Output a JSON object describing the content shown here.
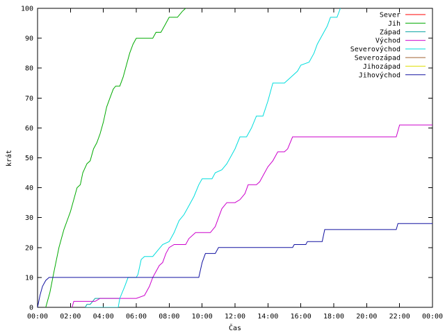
{
  "chart_data": {
    "type": "line",
    "xlabel": "Čas",
    "ylabel": "krát",
    "xlim": [
      0,
      24
    ],
    "ylim": [
      0,
      100
    ],
    "x_ticks": [
      {
        "value": 0,
        "label": "00:00"
      },
      {
        "value": 2,
        "label": "02:00"
      },
      {
        "value": 4,
        "label": "04:00"
      },
      {
        "value": 6,
        "label": "06:00"
      },
      {
        "value": 8,
        "label": "08:00"
      },
      {
        "value": 10,
        "label": "10:00"
      },
      {
        "value": 12,
        "label": "12:00"
      },
      {
        "value": 14,
        "label": "14:00"
      },
      {
        "value": 16,
        "label": "16:00"
      },
      {
        "value": 18,
        "label": "18:00"
      },
      {
        "value": 20,
        "label": "20:00"
      },
      {
        "value": 22,
        "label": "22:00"
      },
      {
        "value": 24,
        "label": "00:00"
      }
    ],
    "y_ticks": [
      0,
      10,
      20,
      30,
      40,
      50,
      60,
      70,
      80,
      90,
      100
    ],
    "grid": false,
    "legend_position": "top-right",
    "series": [
      {
        "name": "Sever",
        "color": "#ff0000",
        "points": []
      },
      {
        "name": "Jih",
        "color": "#00aa00",
        "points": [
          [
            0.5,
            0
          ],
          [
            0.75,
            5
          ],
          [
            1.0,
            12
          ],
          [
            1.3,
            20
          ],
          [
            1.6,
            26
          ],
          [
            1.8,
            29
          ],
          [
            2.0,
            32
          ],
          [
            2.2,
            36
          ],
          [
            2.4,
            40
          ],
          [
            2.6,
            41
          ],
          [
            2.75,
            45
          ],
          [
            3.0,
            48
          ],
          [
            3.2,
            49
          ],
          [
            3.4,
            53
          ],
          [
            3.6,
            55
          ],
          [
            3.8,
            58
          ],
          [
            4.0,
            62
          ],
          [
            4.2,
            67
          ],
          [
            4.4,
            70
          ],
          [
            4.6,
            73
          ],
          [
            4.75,
            74
          ],
          [
            5.0,
            74
          ],
          [
            5.2,
            77
          ],
          [
            5.4,
            81
          ],
          [
            5.6,
            85
          ],
          [
            5.8,
            88
          ],
          [
            6.0,
            90
          ],
          [
            6.5,
            90
          ],
          [
            7.0,
            90
          ],
          [
            7.2,
            92
          ],
          [
            7.5,
            92
          ],
          [
            7.8,
            95
          ],
          [
            8.0,
            97
          ],
          [
            8.5,
            97
          ],
          [
            8.8,
            99
          ],
          [
            9.0,
            100
          ]
        ]
      },
      {
        "name": "Západ",
        "color": "#00a0a0",
        "points": [
          [
            2.9,
            0
          ],
          [
            3.0,
            1
          ],
          [
            3.2,
            1
          ],
          [
            3.35,
            2
          ],
          [
            3.5,
            3
          ],
          [
            4.0,
            3
          ],
          [
            5.0,
            3
          ]
        ]
      },
      {
        "name": "Východ",
        "color": "#cc00cc",
        "points": [
          [
            2.1,
            0
          ],
          [
            2.2,
            2
          ],
          [
            3.0,
            2
          ],
          [
            3.5,
            2
          ],
          [
            3.8,
            3
          ],
          [
            4.5,
            3
          ],
          [
            5.5,
            3
          ],
          [
            6.0,
            3
          ],
          [
            6.5,
            4
          ],
          [
            6.8,
            7
          ],
          [
            7.0,
            10
          ],
          [
            7.2,
            12
          ],
          [
            7.4,
            14
          ],
          [
            7.6,
            15
          ],
          [
            7.8,
            18
          ],
          [
            8.0,
            20
          ],
          [
            8.3,
            21
          ],
          [
            9.0,
            21
          ],
          [
            9.2,
            23
          ],
          [
            9.6,
            25
          ],
          [
            10.5,
            25
          ],
          [
            10.8,
            27
          ],
          [
            11.0,
            30
          ],
          [
            11.2,
            33
          ],
          [
            11.5,
            35
          ],
          [
            12.0,
            35
          ],
          [
            12.3,
            36
          ],
          [
            12.6,
            38
          ],
          [
            12.8,
            41
          ],
          [
            13.3,
            41
          ],
          [
            13.5,
            42
          ],
          [
            13.8,
            45
          ],
          [
            14.0,
            47
          ],
          [
            14.3,
            49
          ],
          [
            14.6,
            52
          ],
          [
            15.0,
            52
          ],
          [
            15.2,
            53
          ],
          [
            15.5,
            57
          ],
          [
            17.0,
            57
          ],
          [
            18.0,
            57
          ],
          [
            20.0,
            57
          ],
          [
            21.8,
            57
          ],
          [
            22.0,
            61
          ],
          [
            24.0,
            61
          ]
        ]
      },
      {
        "name": "Severovýchod",
        "color": "#00dddd",
        "points": [
          [
            2.9,
            0
          ],
          [
            4.9,
            0
          ],
          [
            5.0,
            3
          ],
          [
            5.3,
            7
          ],
          [
            5.5,
            10
          ],
          [
            6.0,
            10
          ],
          [
            6.1,
            11
          ],
          [
            6.3,
            16
          ],
          [
            6.5,
            17
          ],
          [
            7.0,
            17
          ],
          [
            7.3,
            19
          ],
          [
            7.6,
            21
          ],
          [
            8.0,
            22
          ],
          [
            8.3,
            25
          ],
          [
            8.6,
            29
          ],
          [
            8.9,
            31
          ],
          [
            9.2,
            34
          ],
          [
            9.5,
            37
          ],
          [
            9.8,
            41
          ],
          [
            10.0,
            43
          ],
          [
            10.6,
            43
          ],
          [
            10.8,
            45
          ],
          [
            11.2,
            46
          ],
          [
            11.5,
            48
          ],
          [
            11.8,
            51
          ],
          [
            12.0,
            53
          ],
          [
            12.3,
            57
          ],
          [
            12.7,
            57
          ],
          [
            13.0,
            60
          ],
          [
            13.3,
            64
          ],
          [
            13.7,
            64
          ],
          [
            14.0,
            69
          ],
          [
            14.3,
            75
          ],
          [
            15.0,
            75
          ],
          [
            15.4,
            77
          ],
          [
            15.8,
            79
          ],
          [
            16.0,
            81
          ],
          [
            16.5,
            82
          ],
          [
            16.8,
            85
          ],
          [
            17.0,
            88
          ],
          [
            17.3,
            91
          ],
          [
            17.6,
            94
          ],
          [
            17.8,
            97
          ],
          [
            18.2,
            97
          ],
          [
            18.4,
            100
          ]
        ]
      },
      {
        "name": "Severozápad",
        "color": "#a06030",
        "points": []
      },
      {
        "name": "Jihozápad",
        "color": "#dddd00",
        "points": []
      },
      {
        "name": "Jihovýchod",
        "color": "#1010a0",
        "points": [
          [
            0,
            0
          ],
          [
            0.15,
            4
          ],
          [
            0.3,
            7
          ],
          [
            0.5,
            9
          ],
          [
            0.7,
            10
          ],
          [
            3.0,
            10
          ],
          [
            6.0,
            10
          ],
          [
            9.8,
            10
          ],
          [
            10.0,
            15
          ],
          [
            10.2,
            18
          ],
          [
            10.8,
            18
          ],
          [
            11.0,
            20
          ],
          [
            13.0,
            20
          ],
          [
            15.5,
            20
          ],
          [
            15.6,
            21
          ],
          [
            16.3,
            21
          ],
          [
            16.4,
            22
          ],
          [
            17.3,
            22
          ],
          [
            17.45,
            26
          ],
          [
            21.8,
            26
          ],
          [
            21.9,
            28
          ],
          [
            24.0,
            28
          ]
        ]
      }
    ]
  }
}
